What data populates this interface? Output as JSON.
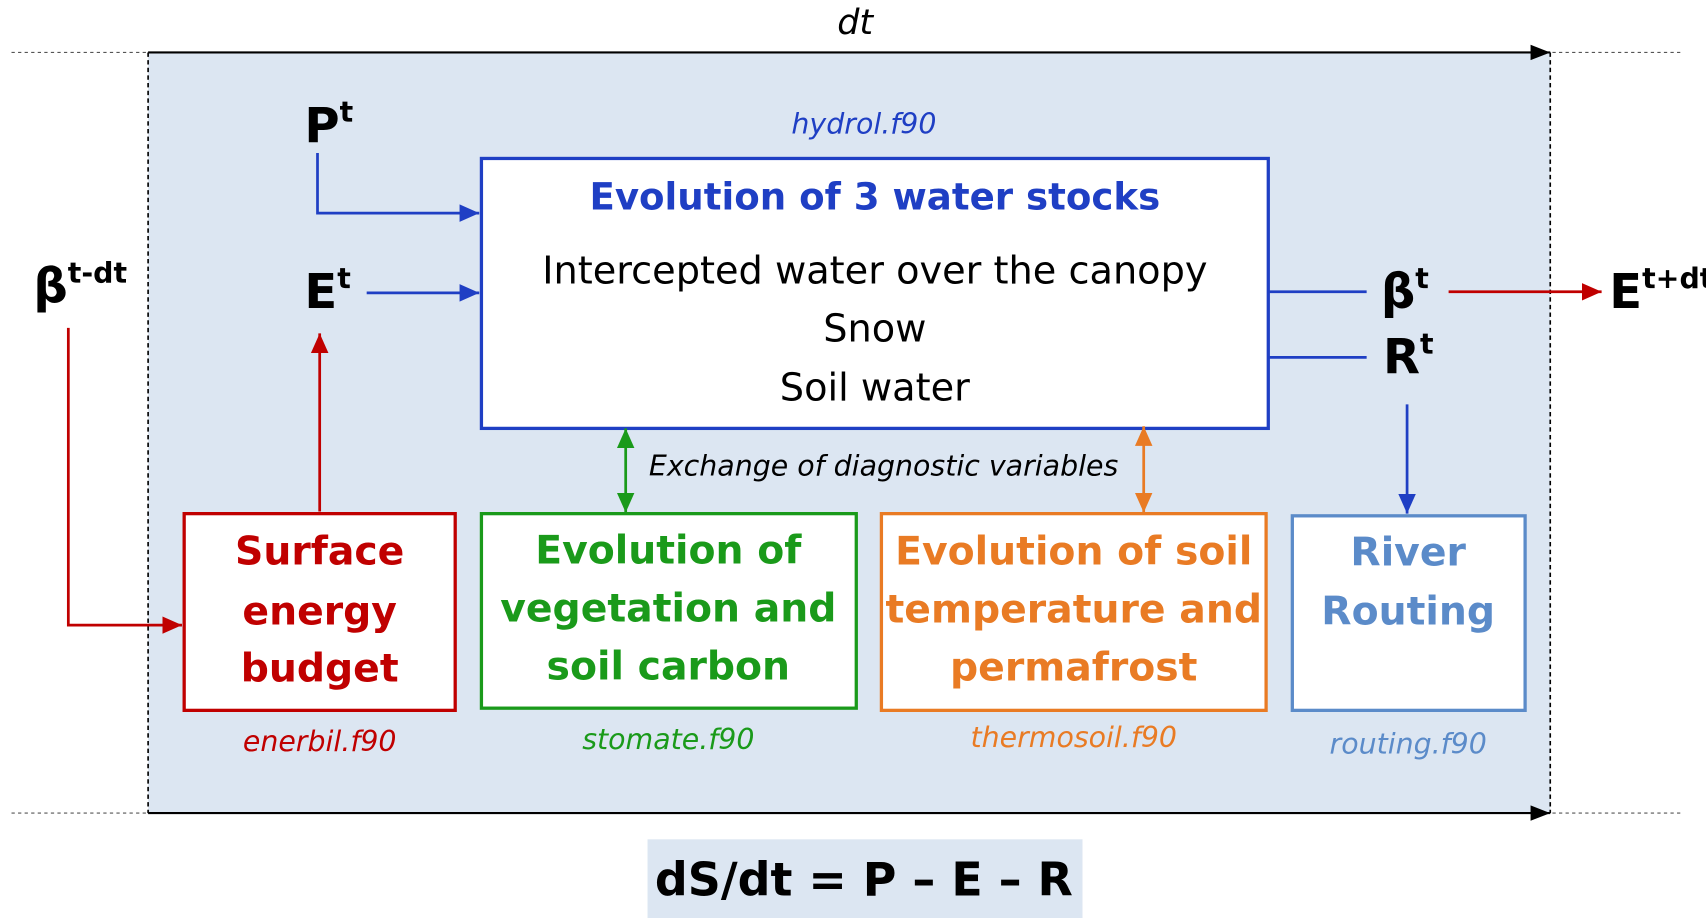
{
  "time_step": "dt",
  "inputs": [
    {
      "base": "β",
      "sup": "t-dt"
    },
    {
      "base": "P",
      "sup": "t"
    },
    {
      "base": "E",
      "sup": "t"
    }
  ],
  "outputs": [
    {
      "base": "β",
      "sup": "t"
    },
    {
      "base": "R",
      "sup": "t"
    },
    {
      "base": "E",
      "sup": "t+dt"
    }
  ],
  "hydrol": {
    "file": "hydrol.f90",
    "title": "Evolution of 3 water stocks",
    "lines": [
      "Intercepted water over the canopy",
      "Snow",
      "Soil water"
    ]
  },
  "exchange": "Exchange of diagnostic variables",
  "modules": [
    {
      "lines": [
        "Surface",
        "energy",
        "budget"
      ],
      "file": "enerbil.f90"
    },
    {
      "lines": [
        "Evolution of",
        "vegetation and",
        "soil carbon"
      ],
      "file": "stomate.f90"
    },
    {
      "lines": [
        "Evolution of soil",
        "temperature and",
        "permafrost"
      ],
      "file": "thermosoil.f90"
    },
    {
      "lines": [
        "River",
        "Routing"
      ],
      "file": "routing.f90"
    }
  ],
  "equation": "dS/dt = P – E – R"
}
